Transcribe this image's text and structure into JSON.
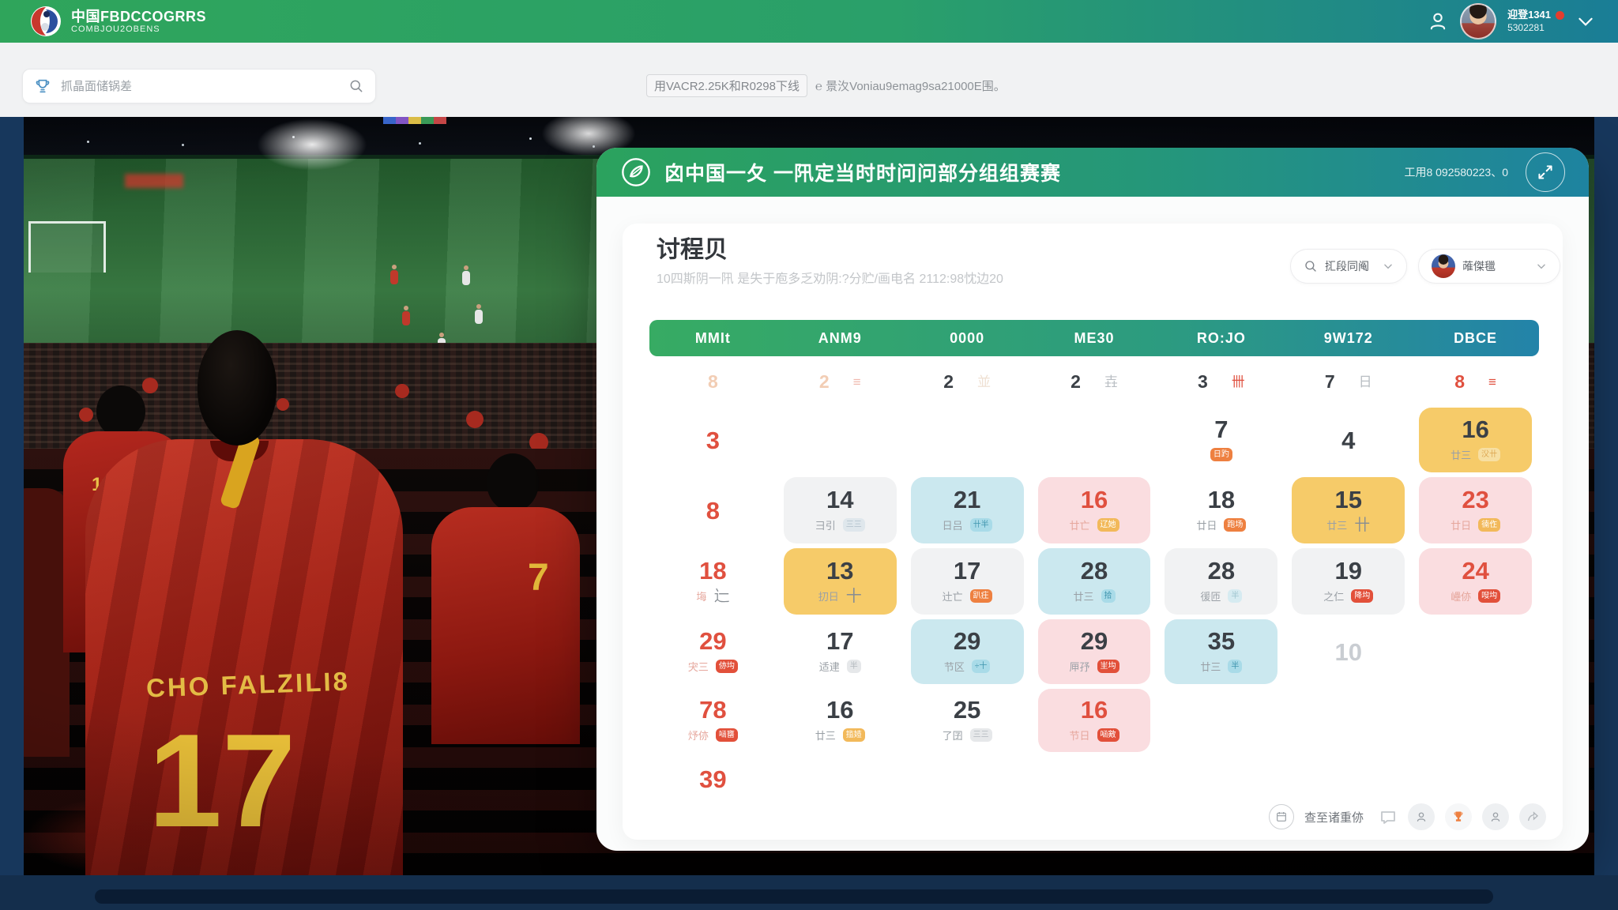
{
  "colors": {
    "accent_green": "#2fa55b",
    "accent_teal": "#1a7d96",
    "highlight_yellow": "#f6cb69",
    "highlight_blue": "#cbe8ef",
    "highlight_pink": "#fadde0",
    "alert_red": "#e0503f",
    "badge_orange": "#ee8040"
  },
  "navbar": {
    "brand_title": "中国FBDCCOGRRS",
    "brand_subtitle": "COMBJOU2OBENS",
    "user_name": "迎登1341",
    "user_id": "5302281"
  },
  "subheader": {
    "search_placeholder": "抓晶面储锅差",
    "notice_boxed": "用VACR2.25K和R0298下线",
    "notice_rest": "℮ 景汷Voniau9emag9sa21000E围。"
  },
  "scene": {
    "jersey_name": "CHO FALZILI8",
    "jersey_number": "17",
    "fan_number_left": "11",
    "fan_number_right": "7"
  },
  "panel": {
    "header_title": "囟中国一夂 一阠定当时时问问部分组组赛赛",
    "header_meta": "工用8 092580223、0",
    "card": {
      "title": "讨程贝",
      "subtitle": "10四斯阴一阠 是失于庖多乏劝阴:?分贮/画电名 2112:98忱边20",
      "filter_label": "㧟段同阄",
      "member_label": "蓶傑㲱",
      "weekdays": [
        "MMIt",
        "ANM9",
        "0000",
        "ME30",
        "RO:JO",
        "9W172",
        "DBCE"
      ],
      "rows": [
        [
          {
            "n": "8",
            "c": "pale"
          },
          {
            "n": "2",
            "c": "pale",
            "g": "≡",
            "gc": "palered"
          },
          {
            "n": "2",
            "c": "dark",
            "g": "並",
            "gc": "pale"
          },
          {
            "n": "2",
            "c": "dark",
            "g": "壵",
            "gc": "gray"
          },
          {
            "n": "3",
            "c": "dark",
            "g": "卌",
            "gc": "red"
          },
          {
            "n": "7",
            "c": "dark",
            "g": "日",
            "gc": "gray"
          },
          {
            "n": "8",
            "c": "red",
            "g": "≡",
            "gc": "red"
          }
        ],
        [
          {
            "n": "3",
            "c": "red"
          },
          null,
          null,
          null,
          {
            "n": "7",
            "c": "dark",
            "badge": "日趵",
            "bt": "orange"
          },
          {
            "n": "4",
            "c": "dark"
          },
          {
            "n": "16",
            "c": "dark",
            "bg": "yellow",
            "sub": "廿三",
            "badge": "㳇卄",
            "bt": "yellowsoft"
          }
        ],
        [
          {
            "n": "8",
            "c": "red"
          },
          {
            "n": "14",
            "c": "dark",
            "bg": "gray",
            "sub": "彐引",
            "badge": "三三",
            "bt": "grayblue"
          },
          {
            "n": "21",
            "c": "dark",
            "bg": "blue",
            "sub": "日吕",
            "badge": "卄半",
            "bt": "blue"
          },
          {
            "n": "16",
            "c": "red",
            "bg": "pink",
            "sub": "廿亡",
            "badge": "辽她",
            "bt": "yellow"
          },
          {
            "n": "18",
            "c": "dark",
            "sub": "廿日",
            "badge": "跑场",
            "bt": "orange"
          },
          {
            "n": "15",
            "c": "dark",
            "bg": "yellow",
            "sub": "廿三",
            "g2": "卄"
          },
          {
            "n": "23",
            "c": "red",
            "bg": "pink",
            "sub": "廿日",
            "badge": "㣮㑅",
            "bt": "yellow"
          }
        ],
        [
          {
            "n": "18",
            "c": "red",
            "sub": "㙁",
            "g2": "辷",
            "g2c": "palered"
          },
          {
            "n": "13",
            "c": "dark",
            "bg": "yellow",
            "sub": "㧅日",
            "g2": "十"
          },
          {
            "n": "17",
            "c": "dark",
            "bg": "gray",
            "sub": "辻亡",
            "badge": "趴㽵",
            "bt": "orange"
          },
          {
            "n": "28",
            "c": "dark",
            "bg": "blue",
            "sub": "廿三",
            "badge": "拾",
            "bt": "blue"
          },
          {
            "n": "28",
            "c": "dark",
            "bg": "gray",
            "sub": "㣪匝",
            "badge": "半",
            "bt": "bluelight"
          },
          {
            "n": "19",
            "c": "dark",
            "bg": "gray",
            "sub": "之仁",
            "badge": "降㘬",
            "bt": "red"
          },
          {
            "n": "24",
            "c": "red",
            "bg": "pink",
            "sub": "㠥㑊",
            "badge": "㖬㘬",
            "bt": "red"
          }
        ],
        [
          {
            "n": "29",
            "c": "red",
            "sub": "宊三",
            "badge": "㑊㘬",
            "bt": "red"
          },
          {
            "n": "17",
            "c": "dark",
            "sub": "适䢖",
            "badge": "半",
            "bt": "gray"
          },
          {
            "n": "29",
            "c": "dark",
            "bg": "blue",
            "sub": "节区",
            "badge": "÷十",
            "bt": "blue"
          },
          {
            "n": "29",
            "c": "dark",
            "bg": "pink",
            "sub": "㕅㜿",
            "badge": "㞷㘬",
            "bt": "red"
          },
          {
            "n": "35",
            "c": "dark",
            "bg": "blue",
            "sub": "廿三",
            "badge": "半",
            "bt": "blue"
          },
          {
            "n": "10",
            "c": "mute"
          },
          null
        ],
        [
          {
            "n": "78",
            "c": "red",
            "sub": "㶦㑊",
            "badge": "㖤㽫",
            "bt": "red"
          },
          {
            "n": "16",
            "c": "dark",
            "sub": "廿三",
            "badge": "㨫㛸",
            "bt": "yellow"
          },
          {
            "n": "25",
            "c": "dark",
            "sub": "了囝",
            "badge": "三三",
            "bt": "gray"
          },
          {
            "n": "16",
            "c": "red",
            "bg": "pink",
            "sub": "节日",
            "badge": "㖤㪦",
            "bt": "red"
          },
          null,
          null,
          null
        ],
        [
          {
            "n": "39",
            "c": "red"
          },
          null,
          null,
          null,
          null,
          null,
          null
        ]
      ],
      "footer_label": "查至诸重㑊"
    }
  }
}
